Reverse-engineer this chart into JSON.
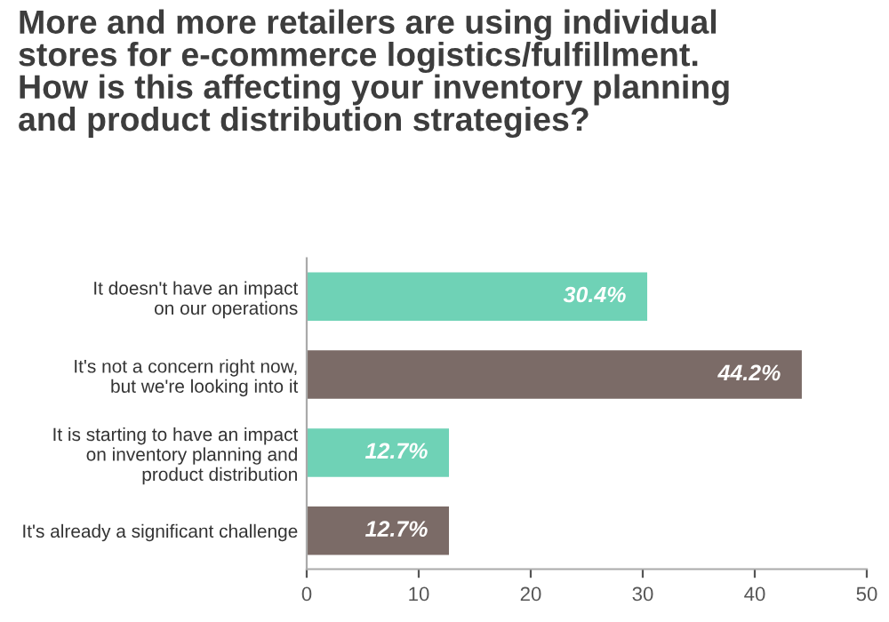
{
  "chart_data": {
    "type": "bar",
    "orientation": "horizontal",
    "title": "More and more retailers are using individual\nstores for e-commerce logistics/fulfillment.\nHow is this affecting your inventory planning\nand product distribution strategies?",
    "categories": [
      "It doesn't have an impact\non our operations",
      "It's not a concern right now,\nbut we're looking into it",
      "It is starting to have an impact\non inventory planning and\nproduct distribution",
      "It's already a significant challenge"
    ],
    "values": [
      30.4,
      44.2,
      12.7,
      12.7
    ],
    "colors": [
      "#6fd2b6",
      "#7b6b67",
      "#6fd2b6",
      "#7b6b67"
    ],
    "value_labels": [
      "30.4%",
      "44.2%",
      "12.7%",
      "12.7%"
    ],
    "xlim": [
      0,
      50
    ],
    "xticks": [
      0,
      10,
      20,
      30,
      40,
      50
    ],
    "grid": false
  }
}
